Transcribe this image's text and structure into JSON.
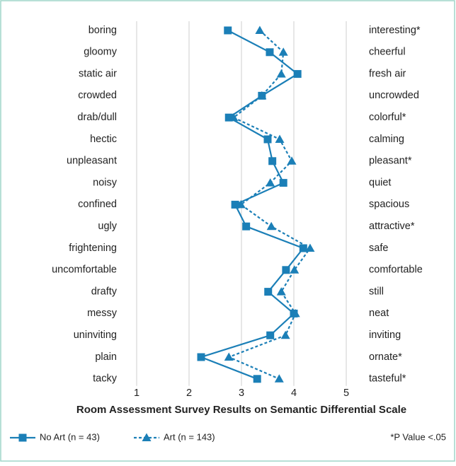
{
  "chart_data": {
    "type": "line",
    "orientation": "horizontal",
    "title": "Room Assessment Survey Results on Semantic Differential Scale",
    "categories": [
      "boring",
      "gloomy",
      "static air",
      "crowded",
      "drab/dull",
      "hectic",
      "unpleasant",
      "noisy",
      "confined",
      "ugly",
      "frightening",
      "uncomfortable",
      "drafty",
      "messy",
      "uninviting",
      "plain",
      "tacky"
    ],
    "right_labels": [
      "interesting*",
      "cheerful",
      "fresh air",
      "uncrowded",
      "colorful*",
      "calming",
      "pleasant*",
      "quiet",
      "spacious",
      "attractive*",
      "safe",
      "comfortable",
      "still",
      "neat",
      "inviting",
      "ornate*",
      "tasteful*"
    ],
    "series": [
      {
        "name": "No Art (n = 43)",
        "color": "#1b7fb7",
        "marker": "square",
        "line_style": "solid",
        "values": [
          2.74,
          3.54,
          4.07,
          3.39,
          2.76,
          3.5,
          3.59,
          3.8,
          2.88,
          3.09,
          4.18,
          3.85,
          3.51,
          4.0,
          3.55,
          2.23,
          3.3
        ]
      },
      {
        "name": "Art (n = 143)",
        "color": "#1b7fb7",
        "marker": "triangle",
        "line_style": "dashed",
        "values": [
          3.35,
          3.8,
          3.76,
          3.39,
          2.85,
          3.73,
          3.96,
          3.55,
          2.99,
          3.57,
          4.31,
          4.01,
          3.76,
          4.03,
          3.84,
          2.76,
          3.72
        ]
      }
    ],
    "xlim": [
      1,
      5
    ],
    "xticks": [
      1,
      2,
      3,
      4,
      5
    ],
    "grid": true,
    "note": "*P Value <.05"
  }
}
